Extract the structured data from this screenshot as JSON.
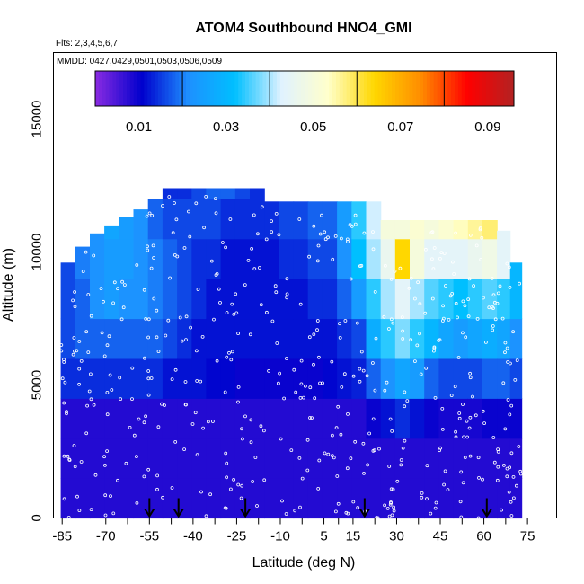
{
  "chart_data": {
    "type": "heatmap",
    "title": "ATOM4 Southbound HNO4_GMI",
    "flights_label": "Flts: 2,3,4,5,6,7",
    "dates_label": "MMDD: 0427,0429,0501,0503,0506,0509",
    "xlabel": "Latitude (deg N)",
    "ylabel": "Altitude (m)",
    "xlim": [
      -88,
      85
    ],
    "ylim": [
      0,
      17500
    ],
    "x_ticks": [
      -85,
      -70,
      -55,
      -40,
      -25,
      -10,
      5,
      15,
      30,
      45,
      60,
      75
    ],
    "x_tick_labels": [
      "-85",
      "-70",
      "-55",
      "-40",
      "-25",
      "-10",
      "5",
      "15",
      "30",
      "45",
      "60",
      "75"
    ],
    "y_ticks": [
      0,
      5000,
      10000,
      15000
    ],
    "y_tick_labels": [
      "0",
      "5000",
      "10000",
      "15000"
    ],
    "colorbar": {
      "range": [
        0,
        0.096
      ],
      "tick_values": [
        0.01,
        0.03,
        0.05,
        0.07,
        0.09
      ],
      "tick_labels": [
        "0.01",
        "0.03",
        "0.05",
        "0.07",
        "0.09"
      ],
      "divisions": [
        0.02,
        0.04,
        0.06,
        0.08
      ],
      "colors": [
        "#8a2be2",
        "#0000cd",
        "#1e90ff",
        "#00bfff",
        "#e0f2ff",
        "#ffffcc",
        "#ffd700",
        "#ff8c00",
        "#ff0000",
        "#b22222"
      ]
    },
    "arrow_latitudes": [
      -55,
      -45,
      -22,
      19,
      61
    ],
    "columns": [
      {
        "lat": -83,
        "top": 9600,
        "levels": [
          0.008,
          0.008,
          0.008,
          0.014,
          0.016,
          0.016
        ]
      },
      {
        "lat": -78,
        "top": 10200,
        "levels": [
          0.008,
          0.008,
          0.008,
          0.014,
          0.018,
          0.018,
          0.02
        ]
      },
      {
        "lat": -73,
        "top": 10700,
        "levels": [
          0.008,
          0.008,
          0.008,
          0.014,
          0.018,
          0.022,
          0.022
        ]
      },
      {
        "lat": -68,
        "top": 11000,
        "levels": [
          0.008,
          0.008,
          0.008,
          0.014,
          0.018,
          0.024,
          0.024,
          0.026
        ]
      },
      {
        "lat": -63,
        "top": 11300,
        "levels": [
          0.008,
          0.008,
          0.008,
          0.014,
          0.018,
          0.022,
          0.024,
          0.024
        ]
      },
      {
        "lat": -58,
        "top": 11600,
        "levels": [
          0.008,
          0.008,
          0.008,
          0.014,
          0.018,
          0.022,
          0.022,
          0.022
        ]
      },
      {
        "lat": -53,
        "top": 12000,
        "levels": [
          0.008,
          0.008,
          0.008,
          0.014,
          0.018,
          0.02,
          0.02,
          0.018,
          0.016
        ]
      },
      {
        "lat": -48,
        "top": 12400,
        "levels": [
          0.008,
          0.008,
          0.008,
          0.012,
          0.016,
          0.018,
          0.018,
          0.016,
          0.014
        ]
      },
      {
        "lat": -43,
        "top": 12400,
        "levels": [
          0.008,
          0.008,
          0.008,
          0.012,
          0.014,
          0.016,
          0.016,
          0.016,
          0.014
        ]
      },
      {
        "lat": -38,
        "top": 12400,
        "levels": [
          0.008,
          0.008,
          0.008,
          0.012,
          0.012,
          0.014,
          0.014,
          0.016,
          0.016
        ]
      },
      {
        "lat": -33,
        "top": 12400,
        "levels": [
          0.008,
          0.008,
          0.008,
          0.011,
          0.012,
          0.012,
          0.014,
          0.016,
          0.018
        ]
      },
      {
        "lat": -28,
        "top": 12400,
        "levels": [
          0.008,
          0.008,
          0.008,
          0.011,
          0.012,
          0.012,
          0.012,
          0.014,
          0.018
        ]
      },
      {
        "lat": -23,
        "top": 12400,
        "levels": [
          0.008,
          0.008,
          0.008,
          0.01,
          0.012,
          0.012,
          0.012,
          0.014,
          0.016
        ]
      },
      {
        "lat": -18,
        "top": 12400,
        "levels": [
          0.008,
          0.008,
          0.008,
          0.01,
          0.012,
          0.012,
          0.012,
          0.014,
          0.014
        ]
      },
      {
        "lat": -13,
        "top": 11900,
        "levels": [
          0.008,
          0.008,
          0.008,
          0.01,
          0.012,
          0.012,
          0.012,
          0.014
        ]
      },
      {
        "lat": -8,
        "top": 11900,
        "levels": [
          0.008,
          0.008,
          0.008,
          0.01,
          0.012,
          0.012,
          0.014,
          0.016
        ]
      },
      {
        "lat": -3,
        "top": 11900,
        "levels": [
          0.008,
          0.008,
          0.008,
          0.01,
          0.012,
          0.012,
          0.014,
          0.016
        ]
      },
      {
        "lat": 2,
        "top": 11900,
        "levels": [
          0.008,
          0.008,
          0.008,
          0.01,
          0.012,
          0.014,
          0.016,
          0.018
        ]
      },
      {
        "lat": 7,
        "top": 11900,
        "levels": [
          0.008,
          0.008,
          0.008,
          0.011,
          0.012,
          0.014,
          0.016,
          0.018
        ]
      },
      {
        "lat": 12,
        "top": 11900,
        "levels": [
          0.008,
          0.008,
          0.008,
          0.012,
          0.014,
          0.018,
          0.022,
          0.024
        ]
      },
      {
        "lat": 17,
        "top": 11900,
        "levels": [
          0.008,
          0.008,
          0.008,
          0.013,
          0.016,
          0.024,
          0.032,
          0.034
        ]
      },
      {
        "lat": 22,
        "top": 11900,
        "levels": [
          0.008,
          0.008,
          0.01,
          0.018,
          0.028,
          0.034,
          0.04,
          0.042
        ]
      },
      {
        "lat": 27,
        "top": 11200,
        "levels": [
          0.008,
          0.008,
          0.012,
          0.022,
          0.034,
          0.04,
          0.046,
          0.05
        ]
      },
      {
        "lat": 32,
        "top": 11200,
        "levels": [
          0.008,
          0.008,
          0.014,
          0.026,
          0.038,
          0.044,
          0.064,
          0.05
        ]
      },
      {
        "lat": 37,
        "top": 11200,
        "levels": [
          0.008,
          0.008,
          0.012,
          0.024,
          0.034,
          0.04,
          0.05,
          0.052
        ]
      },
      {
        "lat": 42,
        "top": 11200,
        "levels": [
          0.008,
          0.008,
          0.01,
          0.018,
          0.03,
          0.036,
          0.044,
          0.05
        ]
      },
      {
        "lat": 47,
        "top": 11200,
        "levels": [
          0.008,
          0.008,
          0.009,
          0.016,
          0.026,
          0.034,
          0.044,
          0.052
        ]
      },
      {
        "lat": 52,
        "top": 11200,
        "levels": [
          0.008,
          0.008,
          0.009,
          0.016,
          0.024,
          0.032,
          0.044,
          0.054
        ]
      },
      {
        "lat": 57,
        "top": 11200,
        "levels": [
          0.008,
          0.008,
          0.009,
          0.016,
          0.026,
          0.034,
          0.046,
          0.056
        ]
      },
      {
        "lat": 62,
        "top": 11200,
        "levels": [
          0.008,
          0.008,
          0.01,
          0.018,
          0.028,
          0.036,
          0.048,
          0.058
        ]
      },
      {
        "lat": 67,
        "top": 10800,
        "levels": [
          0.008,
          0.008,
          0.01,
          0.018,
          0.026,
          0.034,
          0.044
        ]
      },
      {
        "lat": 71,
        "top": 9600,
        "levels": [
          0.008,
          0.008,
          0.01,
          0.016,
          0.022,
          0.03
        ]
      }
    ]
  }
}
